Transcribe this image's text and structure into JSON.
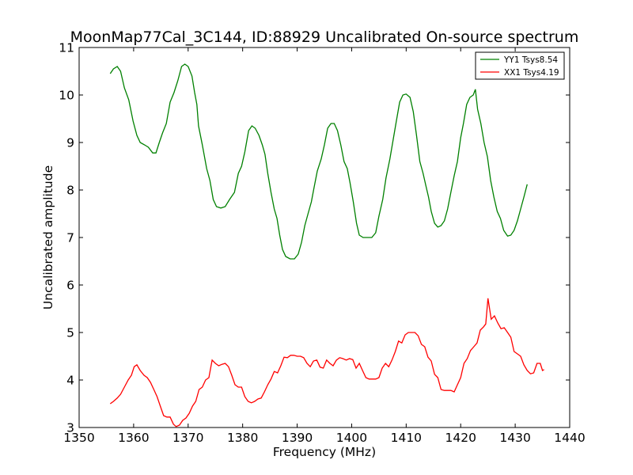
{
  "chart_data": {
    "type": "line",
    "title": "MoonMap77Cal_3C144, ID:88929 Uncalibrated On-source spectrum",
    "xlabel": "Frequency (MHz)",
    "ylabel": "Uncalibrated amplitude",
    "xlim": [
      1350,
      1440
    ],
    "ylim": [
      3,
      11
    ],
    "xticks": [
      1350,
      1360,
      1370,
      1380,
      1390,
      1400,
      1410,
      1420,
      1430,
      1440
    ],
    "yticks": [
      3,
      4,
      5,
      6,
      7,
      8,
      9,
      10,
      11
    ],
    "grid": false,
    "legend_position": "top-right",
    "series": [
      {
        "name": "YY1 Tsys8.54",
        "color": "#008000",
        "points": [
          [
            1355.7,
            10.45
          ],
          [
            1356.3,
            10.55
          ],
          [
            1357.0,
            10.6
          ],
          [
            1357.6,
            10.5
          ],
          [
            1358.3,
            10.15
          ],
          [
            1359.1,
            9.9
          ],
          [
            1359.9,
            9.45
          ],
          [
            1360.6,
            9.15
          ],
          [
            1361.2,
            9.0
          ],
          [
            1362.0,
            8.95
          ],
          [
            1362.7,
            8.9
          ],
          [
            1363.5,
            8.78
          ],
          [
            1364.1,
            8.78
          ],
          [
            1364.7,
            9.0
          ],
          [
            1365.3,
            9.2
          ],
          [
            1366.0,
            9.4
          ],
          [
            1366.7,
            9.85
          ],
          [
            1367.4,
            10.05
          ],
          [
            1368.1,
            10.3
          ],
          [
            1368.8,
            10.6
          ],
          [
            1369.4,
            10.65
          ],
          [
            1370.0,
            10.6
          ],
          [
            1370.7,
            10.4
          ],
          [
            1371.2,
            10.05
          ],
          [
            1371.6,
            9.8
          ],
          [
            1371.9,
            9.35
          ],
          [
            1372.6,
            8.95
          ],
          [
            1373.4,
            8.45
          ],
          [
            1374.0,
            8.2
          ],
          [
            1374.6,
            7.8
          ],
          [
            1375.2,
            7.65
          ],
          [
            1376.0,
            7.62
          ],
          [
            1376.8,
            7.65
          ],
          [
            1377.6,
            7.8
          ],
          [
            1378.5,
            7.95
          ],
          [
            1379.2,
            8.35
          ],
          [
            1379.8,
            8.5
          ],
          [
            1380.4,
            8.8
          ],
          [
            1381.1,
            9.25
          ],
          [
            1381.7,
            9.35
          ],
          [
            1382.3,
            9.3
          ],
          [
            1383.0,
            9.15
          ],
          [
            1383.6,
            8.95
          ],
          [
            1384.1,
            8.75
          ],
          [
            1384.6,
            8.35
          ],
          [
            1385.2,
            7.95
          ],
          [
            1385.8,
            7.6
          ],
          [
            1386.3,
            7.4
          ],
          [
            1386.8,
            7.05
          ],
          [
            1387.3,
            6.75
          ],
          [
            1387.9,
            6.6
          ],
          [
            1388.7,
            6.55
          ],
          [
            1389.5,
            6.55
          ],
          [
            1390.2,
            6.65
          ],
          [
            1390.8,
            6.9
          ],
          [
            1391.4,
            7.25
          ],
          [
            1392.0,
            7.5
          ],
          [
            1392.6,
            7.75
          ],
          [
            1393.1,
            8.05
          ],
          [
            1393.7,
            8.4
          ],
          [
            1394.4,
            8.65
          ],
          [
            1395.0,
            8.95
          ],
          [
            1395.6,
            9.3
          ],
          [
            1396.2,
            9.4
          ],
          [
            1396.8,
            9.4
          ],
          [
            1397.4,
            9.25
          ],
          [
            1398.0,
            8.95
          ],
          [
            1398.6,
            8.6
          ],
          [
            1399.2,
            8.45
          ],
          [
            1399.7,
            8.15
          ],
          [
            1400.3,
            7.75
          ],
          [
            1400.9,
            7.3
          ],
          [
            1401.4,
            7.05
          ],
          [
            1402.1,
            7.0
          ],
          [
            1402.9,
            7.0
          ],
          [
            1403.7,
            7.0
          ],
          [
            1404.4,
            7.1
          ],
          [
            1405.0,
            7.45
          ],
          [
            1405.7,
            7.8
          ],
          [
            1406.3,
            8.25
          ],
          [
            1407.0,
            8.65
          ],
          [
            1407.6,
            9.05
          ],
          [
            1408.2,
            9.45
          ],
          [
            1408.8,
            9.85
          ],
          [
            1409.4,
            10.0
          ],
          [
            1410.0,
            10.02
          ],
          [
            1410.7,
            9.95
          ],
          [
            1411.3,
            9.65
          ],
          [
            1411.9,
            9.15
          ],
          [
            1412.5,
            8.6
          ],
          [
            1413.1,
            8.35
          ],
          [
            1413.6,
            8.1
          ],
          [
            1414.1,
            7.85
          ],
          [
            1414.6,
            7.55
          ],
          [
            1415.2,
            7.3
          ],
          [
            1415.8,
            7.22
          ],
          [
            1416.4,
            7.25
          ],
          [
            1417.0,
            7.35
          ],
          [
            1417.6,
            7.6
          ],
          [
            1418.2,
            7.95
          ],
          [
            1418.8,
            8.3
          ],
          [
            1419.4,
            8.6
          ],
          [
            1420.0,
            9.1
          ],
          [
            1420.5,
            9.4
          ],
          [
            1421.1,
            9.8
          ],
          [
            1421.7,
            9.95
          ],
          [
            1422.3,
            10.0
          ],
          [
            1422.7,
            10.12
          ],
          [
            1423.1,
            9.7
          ],
          [
            1423.7,
            9.4
          ],
          [
            1424.3,
            9.0
          ],
          [
            1424.9,
            8.7
          ],
          [
            1425.5,
            8.2
          ],
          [
            1426.1,
            7.85
          ],
          [
            1426.7,
            7.55
          ],
          [
            1427.3,
            7.4
          ],
          [
            1427.9,
            7.15
          ],
          [
            1428.6,
            7.03
          ],
          [
            1429.2,
            7.05
          ],
          [
            1429.8,
            7.15
          ],
          [
            1430.4,
            7.35
          ],
          [
            1431.0,
            7.6
          ],
          [
            1431.6,
            7.85
          ],
          [
            1432.2,
            8.12
          ]
        ]
      },
      {
        "name": "XX1 Tsys4.19",
        "color": "#ff0000",
        "points": [
          [
            1355.7,
            3.5
          ],
          [
            1356.3,
            3.55
          ],
          [
            1357.0,
            3.62
          ],
          [
            1357.6,
            3.7
          ],
          [
            1358.3,
            3.85
          ],
          [
            1359.0,
            4.0
          ],
          [
            1359.6,
            4.1
          ],
          [
            1360.1,
            4.28
          ],
          [
            1360.6,
            4.32
          ],
          [
            1361.2,
            4.2
          ],
          [
            1361.9,
            4.1
          ],
          [
            1362.5,
            4.05
          ],
          [
            1363.1,
            3.95
          ],
          [
            1363.7,
            3.8
          ],
          [
            1364.3,
            3.65
          ],
          [
            1364.9,
            3.45
          ],
          [
            1365.5,
            3.25
          ],
          [
            1366.1,
            3.22
          ],
          [
            1366.7,
            3.22
          ],
          [
            1367.3,
            3.07
          ],
          [
            1367.8,
            3.02
          ],
          [
            1368.4,
            3.05
          ],
          [
            1369.0,
            3.15
          ],
          [
            1369.6,
            3.2
          ],
          [
            1370.2,
            3.3
          ],
          [
            1370.8,
            3.45
          ],
          [
            1371.4,
            3.55
          ],
          [
            1372.0,
            3.8
          ],
          [
            1372.6,
            3.85
          ],
          [
            1373.2,
            4.0
          ],
          [
            1373.8,
            4.05
          ],
          [
            1374.4,
            4.42
          ],
          [
            1375.0,
            4.35
          ],
          [
            1375.6,
            4.3
          ],
          [
            1376.2,
            4.33
          ],
          [
            1376.8,
            4.35
          ],
          [
            1377.4,
            4.28
          ],
          [
            1378.0,
            4.1
          ],
          [
            1378.6,
            3.9
          ],
          [
            1379.2,
            3.85
          ],
          [
            1379.8,
            3.85
          ],
          [
            1380.4,
            3.65
          ],
          [
            1381.0,
            3.55
          ],
          [
            1381.6,
            3.52
          ],
          [
            1382.2,
            3.55
          ],
          [
            1382.8,
            3.6
          ],
          [
            1383.4,
            3.62
          ],
          [
            1384.0,
            3.75
          ],
          [
            1384.6,
            3.9
          ],
          [
            1385.2,
            4.02
          ],
          [
            1385.8,
            4.18
          ],
          [
            1386.4,
            4.15
          ],
          [
            1387.0,
            4.3
          ],
          [
            1387.6,
            4.48
          ],
          [
            1388.2,
            4.47
          ],
          [
            1388.8,
            4.52
          ],
          [
            1389.4,
            4.52
          ],
          [
            1390.0,
            4.5
          ],
          [
            1390.6,
            4.5
          ],
          [
            1391.2,
            4.47
          ],
          [
            1391.8,
            4.35
          ],
          [
            1392.4,
            4.28
          ],
          [
            1393.0,
            4.4
          ],
          [
            1393.6,
            4.42
          ],
          [
            1394.2,
            4.27
          ],
          [
            1394.8,
            4.25
          ],
          [
            1395.4,
            4.42
          ],
          [
            1396.0,
            4.35
          ],
          [
            1396.6,
            4.3
          ],
          [
            1397.2,
            4.42
          ],
          [
            1397.8,
            4.47
          ],
          [
            1398.4,
            4.45
          ],
          [
            1399.0,
            4.42
          ],
          [
            1399.6,
            4.45
          ],
          [
            1400.2,
            4.43
          ],
          [
            1400.8,
            4.25
          ],
          [
            1401.4,
            4.35
          ],
          [
            1402.0,
            4.2
          ],
          [
            1402.6,
            4.05
          ],
          [
            1403.2,
            4.02
          ],
          [
            1403.8,
            4.02
          ],
          [
            1404.4,
            4.02
          ],
          [
            1405.0,
            4.05
          ],
          [
            1405.6,
            4.25
          ],
          [
            1406.2,
            4.35
          ],
          [
            1406.8,
            4.28
          ],
          [
            1407.4,
            4.42
          ],
          [
            1408.0,
            4.6
          ],
          [
            1408.6,
            4.82
          ],
          [
            1409.2,
            4.78
          ],
          [
            1409.8,
            4.95
          ],
          [
            1410.4,
            5.0
          ],
          [
            1411.0,
            5.0
          ],
          [
            1411.6,
            5.0
          ],
          [
            1412.2,
            4.93
          ],
          [
            1412.8,
            4.75
          ],
          [
            1413.4,
            4.7
          ],
          [
            1414.0,
            4.48
          ],
          [
            1414.6,
            4.4
          ],
          [
            1415.2,
            4.12
          ],
          [
            1415.8,
            4.05
          ],
          [
            1416.4,
            3.8
          ],
          [
            1417.0,
            3.78
          ],
          [
            1417.6,
            3.78
          ],
          [
            1418.2,
            3.78
          ],
          [
            1418.8,
            3.75
          ],
          [
            1419.4,
            3.9
          ],
          [
            1420.0,
            4.05
          ],
          [
            1420.6,
            4.35
          ],
          [
            1421.2,
            4.45
          ],
          [
            1421.8,
            4.62
          ],
          [
            1422.4,
            4.7
          ],
          [
            1423.0,
            4.78
          ],
          [
            1423.6,
            5.05
          ],
          [
            1424.2,
            5.12
          ],
          [
            1424.6,
            5.18
          ],
          [
            1425.0,
            5.72
          ],
          [
            1425.6,
            5.28
          ],
          [
            1426.2,
            5.35
          ],
          [
            1426.8,
            5.2
          ],
          [
            1427.4,
            5.08
          ],
          [
            1428.0,
            5.1
          ],
          [
            1428.6,
            5.0
          ],
          [
            1429.2,
            4.9
          ],
          [
            1429.8,
            4.6
          ],
          [
            1430.4,
            4.55
          ],
          [
            1431.0,
            4.5
          ],
          [
            1431.6,
            4.32
          ],
          [
            1432.2,
            4.2
          ],
          [
            1432.8,
            4.13
          ],
          [
            1433.4,
            4.15
          ],
          [
            1434.0,
            4.35
          ],
          [
            1434.6,
            4.35
          ],
          [
            1435.0,
            4.2
          ],
          [
            1435.3,
            4.22
          ]
        ]
      }
    ]
  }
}
